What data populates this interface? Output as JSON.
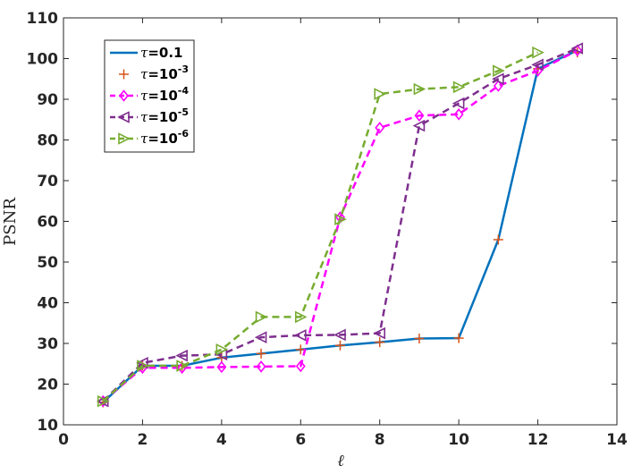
{
  "chart_data": {
    "type": "line",
    "xlabel": "ℓ",
    "ylabel": "PSNR",
    "xlim": [
      0,
      14
    ],
    "ylim": [
      10,
      110
    ],
    "xticks": [
      0,
      2,
      4,
      6,
      8,
      10,
      12,
      14
    ],
    "yticks": [
      10,
      20,
      30,
      40,
      50,
      60,
      70,
      80,
      90,
      100,
      110
    ],
    "grid": false,
    "legend_position": "top-left",
    "series": [
      {
        "name": "τ=0.1",
        "name_parts": {
          "sym": "τ",
          "base": "=0.1",
          "sup": ""
        },
        "color": "#0072BD",
        "dash": "solid",
        "marker": "none",
        "x": [
          1,
          2,
          3,
          4,
          5,
          6,
          7,
          8,
          9,
          10,
          11,
          12,
          13
        ],
        "y": [
          15.5,
          24.5,
          24.5,
          26.5,
          27.5,
          28.5,
          29.5,
          30.3,
          31.2,
          31.3,
          55.5,
          97.5,
          102
        ]
      },
      {
        "name": "τ=10-3",
        "name_parts": {
          "sym": "τ",
          "base": "=10",
          "sup": "-3"
        },
        "color": "#D95319",
        "dash": "none",
        "marker": "plus",
        "x": [
          1,
          2,
          3,
          4,
          5,
          6,
          7,
          8,
          9,
          10,
          11,
          12,
          13
        ],
        "y": [
          15.5,
          24.5,
          24.5,
          26.5,
          27.5,
          28.5,
          29.5,
          30.3,
          31.2,
          31.3,
          55.5,
          97.5,
          101.5
        ]
      },
      {
        "name": "τ=10-4",
        "name_parts": {
          "sym": "τ",
          "base": "=10",
          "sup": "-4"
        },
        "color": "#FF00FF",
        "dash": "dashed",
        "marker": "diamond",
        "x": [
          1,
          2,
          3,
          4,
          5,
          6,
          7,
          8,
          9,
          10,
          11,
          12,
          13
        ],
        "y": [
          15.8,
          24,
          24,
          24.2,
          24.3,
          24.4,
          61,
          83,
          86,
          86.3,
          93.3,
          97,
          102
        ]
      },
      {
        "name": "τ=10-5",
        "name_parts": {
          "sym": "τ",
          "base": "=10",
          "sup": "-5"
        },
        "color": "#7E2F8E",
        "dash": "dashed",
        "marker": "triangle-left",
        "x": [
          1,
          2,
          3,
          4,
          5,
          6,
          7,
          8,
          9,
          10,
          11,
          12,
          13
        ],
        "y": [
          15.8,
          25.2,
          27,
          27.3,
          31.5,
          32,
          32.1,
          32.5,
          83.5,
          89,
          95,
          98.5,
          102.5
        ]
      },
      {
        "name": "τ=10-6",
        "name_parts": {
          "sym": "τ",
          "base": "=10",
          "sup": "-6"
        },
        "color": "#77AC30",
        "dash": "dashed",
        "marker": "triangle-right",
        "x": [
          1,
          2,
          3,
          4,
          5,
          6,
          7,
          8,
          9,
          10,
          11,
          12
        ],
        "y": [
          15.8,
          24.5,
          24.5,
          28.5,
          36.5,
          36.5,
          60.5,
          91.3,
          92.5,
          93,
          97,
          101.5
        ]
      }
    ]
  }
}
